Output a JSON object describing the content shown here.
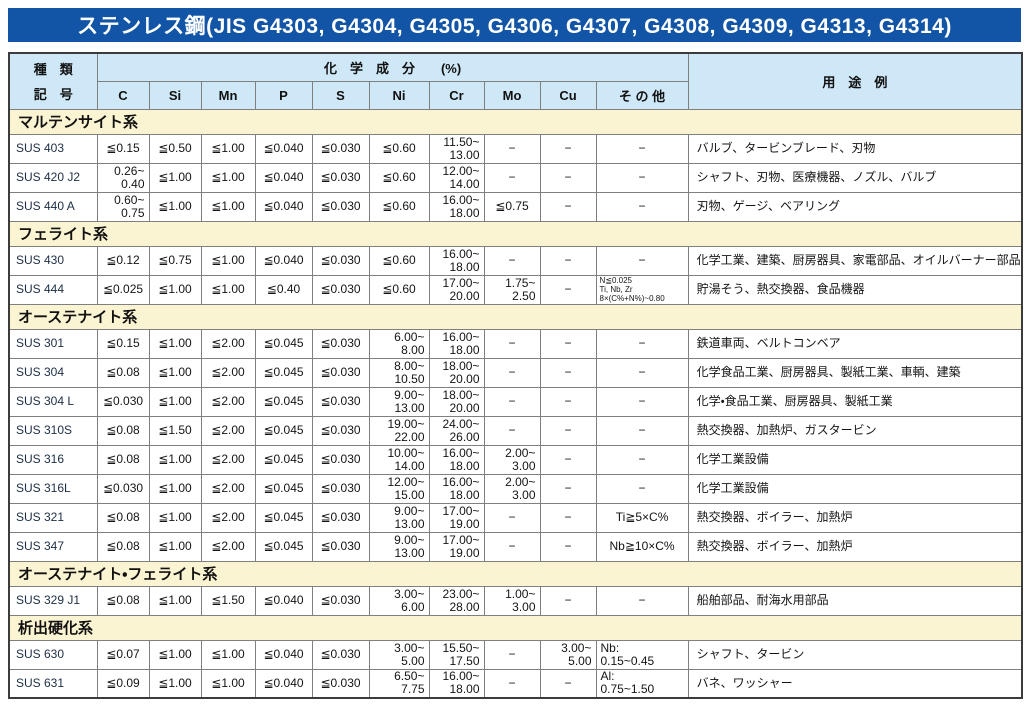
{
  "page": {
    "title": "ステンレス鋼(JIS G4303, G4304, G4305, G4306, G4307, G4308, G4309, G4313, G4314)"
  },
  "colors": {
    "title_bar": "#1254a5",
    "header_cell": "#cfe8f7",
    "section_row": "#fbf4d2",
    "code_cell": "#c8e4f5"
  },
  "table": {
    "header": {
      "kind_line1": "種　類",
      "kind_line2": "記　号",
      "chem_group": "化　学　成　分　　(%)",
      "elements": [
        "C",
        "Si",
        "Mn",
        "P",
        "S",
        "Ni",
        "Cr",
        "Mo",
        "Cu",
        "そ の 他"
      ],
      "usage": "用　途　例"
    },
    "sections": [
      {
        "name": "マルテンサイト系",
        "rows": [
          {
            "code": "SUS 403",
            "c": "≦0.15",
            "si": "≦0.50",
            "mn": "≦1.00",
            "p": "≦0.040",
            "s": "≦0.030",
            "ni": "≦0.60",
            "cr": "11.50~\n13.00",
            "mo": "−",
            "cu": "−",
            "other": "−",
            "use": "バルブ、タービンブレード、刃物"
          },
          {
            "code": "SUS 420 J2",
            "c": "0.26~\n0.40",
            "si": "≦1.00",
            "mn": "≦1.00",
            "p": "≦0.040",
            "s": "≦0.030",
            "ni": "≦0.60",
            "cr": "12.00~\n14.00",
            "mo": "−",
            "cu": "−",
            "other": "−",
            "use": "シャフト、刃物、医療機器、ノズル、バルブ"
          },
          {
            "code": "SUS 440 A",
            "c": "0.60~\n0.75",
            "si": "≦1.00",
            "mn": "≦1.00",
            "p": "≦0.040",
            "s": "≦0.030",
            "ni": "≦0.60",
            "cr": "16.00~\n18.00",
            "mo": "≦0.75",
            "cu": "−",
            "other": "−",
            "use": "刃物、ゲージ、ベアリング"
          }
        ]
      },
      {
        "name": "フェライト系",
        "rows": [
          {
            "code": "SUS 430",
            "c": "≦0.12",
            "si": "≦0.75",
            "mn": "≦1.00",
            "p": "≦0.040",
            "s": "≦0.030",
            "ni": "≦0.60",
            "cr": "16.00~\n18.00",
            "mo": "−",
            "cu": "−",
            "other": "−",
            "use": "化学工業、建築、厨房器具、家電部品、オイルバーナー部品"
          },
          {
            "code": "SUS 444",
            "c": "≦0.025",
            "si": "≦1.00",
            "mn": "≦1.00",
            "p": "≦0.40",
            "s": "≦0.030",
            "ni": "≦0.60",
            "cr": "17.00~\n20.00",
            "mo": "1.75~\n2.50",
            "cu": "−",
            "other": {
              "lines": [
                "N≦0.025",
                "Ti, Nb, Zr",
                "8×(C%+N%)~0.80"
              ],
              "align": "left",
              "size": "xs"
            },
            "use": "貯湯そう、熱交換器、食品機器"
          }
        ]
      },
      {
        "name": "オーステナイト系",
        "rows": [
          {
            "code": "SUS 301",
            "c": "≦0.15",
            "si": "≦1.00",
            "mn": "≦2.00",
            "p": "≦0.045",
            "s": "≦0.030",
            "ni": "6.00~\n8.00",
            "cr": "16.00~\n18.00",
            "mo": "−",
            "cu": "−",
            "other": "−",
            "use": "鉄道車両、ベルトコンベア"
          },
          {
            "code": "SUS 304",
            "c": "≦0.08",
            "si": "≦1.00",
            "mn": "≦2.00",
            "p": "≦0.045",
            "s": "≦0.030",
            "ni": "8.00~\n10.50",
            "cr": "18.00~\n20.00",
            "mo": "−",
            "cu": "−",
            "other": "−",
            "use": "化学食品工業、厨房器具、製紙工業、車輌、建築"
          },
          {
            "code": "SUS 304 L",
            "c": "≦0.030",
            "si": "≦1.00",
            "mn": "≦2.00",
            "p": "≦0.045",
            "s": "≦0.030",
            "ni": "9.00~\n13.00",
            "cr": "18.00~\n20.00",
            "mo": "−",
            "cu": "−",
            "other": "−",
            "use": "化学・食品工業、厨房器具、製紙工業"
          },
          {
            "code": "SUS 310S",
            "c": "≦0.08",
            "si": "≦1.50",
            "mn": "≦2.00",
            "p": "≦0.045",
            "s": "≦0.030",
            "ni": "19.00~\n22.00",
            "cr": "24.00~\n26.00",
            "mo": "−",
            "cu": "−",
            "other": "−",
            "use": "熱交換器、加熱炉、ガスタービン"
          },
          {
            "code": "SUS 316",
            "c": "≦0.08",
            "si": "≦1.00",
            "mn": "≦2.00",
            "p": "≦0.045",
            "s": "≦0.030",
            "ni": "10.00~\n14.00",
            "cr": "16.00~\n18.00",
            "mo": "2.00~\n3.00",
            "cu": "−",
            "other": "−",
            "use": "化学工業設備"
          },
          {
            "code": "SUS 316L",
            "c": "≦0.030",
            "si": "≦1.00",
            "mn": "≦2.00",
            "p": "≦0.045",
            "s": "≦0.030",
            "ni": "12.00~\n15.00",
            "cr": "16.00~\n18.00",
            "mo": "2.00~\n3.00",
            "cu": "−",
            "other": "−",
            "use": "化学工業設備"
          },
          {
            "code": "SUS 321",
            "c": "≦0.08",
            "si": "≦1.00",
            "mn": "≦2.00",
            "p": "≦0.045",
            "s": "≦0.030",
            "ni": "9.00~\n13.00",
            "cr": "17.00~\n19.00",
            "mo": "−",
            "cu": "−",
            "other": "Ti≧5×C%",
            "use": "熱交換器、ボイラー、加熱炉"
          },
          {
            "code": "SUS 347",
            "c": "≦0.08",
            "si": "≦1.00",
            "mn": "≦2.00",
            "p": "≦0.045",
            "s": "≦0.030",
            "ni": "9.00~\n13.00",
            "cr": "17.00~\n19.00",
            "mo": "−",
            "cu": "−",
            "other": "Nb≧10×C%",
            "use": "熱交換器、ボイラー、加熱炉"
          }
        ]
      },
      {
        "name": "オーステナイト・フェライト系",
        "rows": [
          {
            "code": "SUS 329 J1",
            "c": "≦0.08",
            "si": "≦1.00",
            "mn": "≦1.50",
            "p": "≦0.040",
            "s": "≦0.030",
            "ni": "3.00~\n6.00",
            "cr": "23.00~\n28.00",
            "mo": "1.00~\n3.00",
            "cu": "−",
            "other": "−",
            "use": "船舶部品、耐海水用部品"
          }
        ]
      },
      {
        "name": "析出硬化系",
        "rows": [
          {
            "code": "SUS 630",
            "c": "≦0.07",
            "si": "≦1.00",
            "mn": "≦1.00",
            "p": "≦0.040",
            "s": "≦0.030",
            "ni": "3.00~\n5.00",
            "cr": "15.50~\n17.50",
            "mo": "−",
            "cu": "3.00~\n5.00",
            "other": {
              "lines": [
                "Nb:",
                "0.15~0.45"
              ],
              "align": "left"
            },
            "use": "シャフト、タービン"
          },
          {
            "code": "SUS 631",
            "c": "≦0.09",
            "si": "≦1.00",
            "mn": "≦1.00",
            "p": "≦0.040",
            "s": "≦0.030",
            "ni": "6.50~\n7.75",
            "cr": "16.00~\n18.00",
            "mo": "−",
            "cu": "−",
            "other": {
              "lines": [
                "Al:",
                "0.75~1.50"
              ],
              "align": "left"
            },
            "use": "バネ、ワッシャー"
          }
        ]
      }
    ]
  }
}
